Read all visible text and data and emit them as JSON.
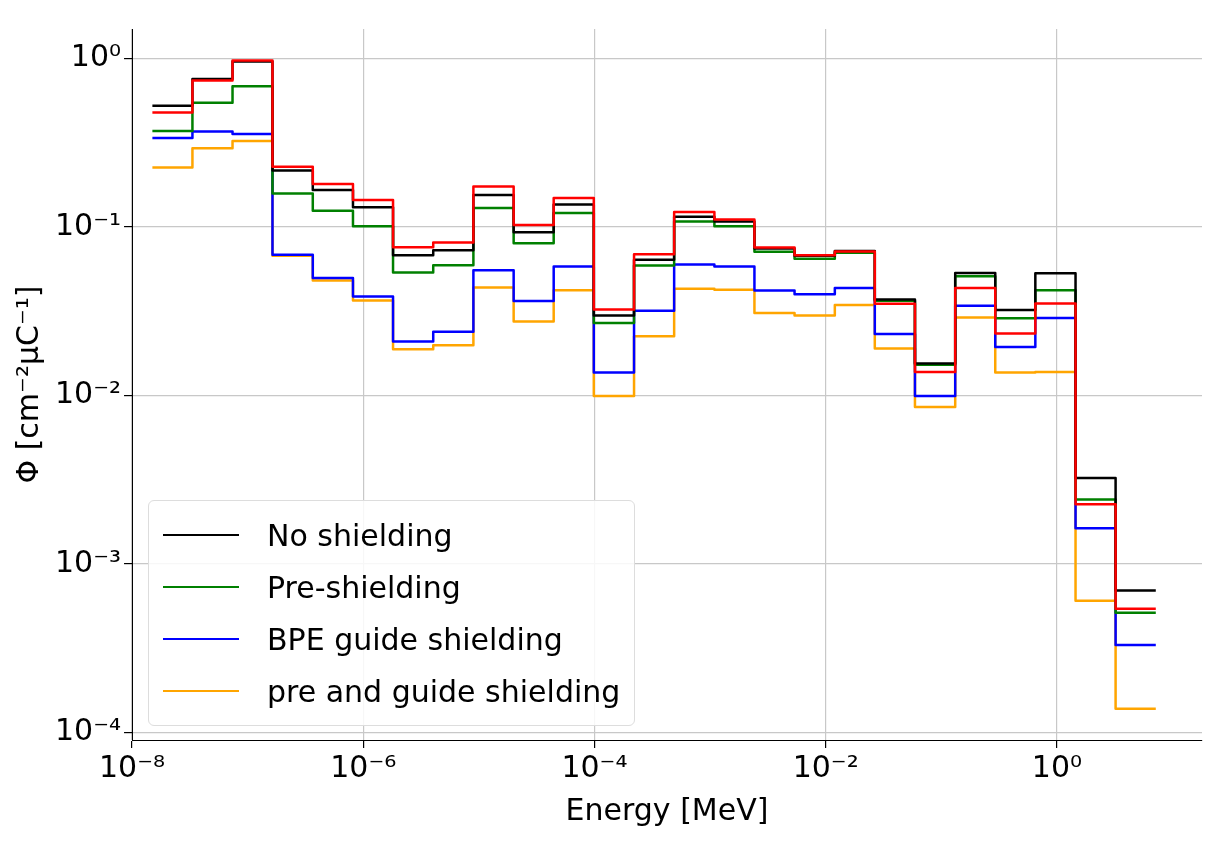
{
  "chart_data": {
    "type": "histogram",
    "xlabel": "Energy [MeV]",
    "ylabel": "Φ [cm⁻²μC⁻¹]",
    "bins": [
      1.5e-08,
      3.33e-08,
      7.4e-08,
      1.64e-07,
      3.66e-07,
      8.15e-07,
      1.81e-06,
      4.03e-06,
      8.97e-06,
      2e-05,
      4.44e-05,
      9.87e-05,
      0.00022,
      0.000489,
      0.00109,
      0.00242,
      0.00538,
      0.012,
      0.0266,
      0.0592,
      0.132,
      0.293,
      0.651,
      1.45,
      3.22,
      7.17
    ],
    "series": [
      {
        "color": "#ff0000",
        "values": [
          0.479,
          0.742,
          0.975,
          0.228,
          0.18,
          0.145,
          0.0758,
          0.0809,
          0.174,
          0.103,
          0.149,
          0.0324,
          0.0689,
          0.123,
          0.111,
          0.0755,
          0.068,
          0.0715,
          0.035,
          0.0138,
          0.0435,
          0.0233,
          0.0352,
          0.00226,
          0.000542
        ]
      },
      {
        "name": "No shielding",
        "color": "#000000",
        "values": [
          0.525,
          0.758,
          0.962,
          0.217,
          0.166,
          0.131,
          0.068,
          0.0729,
          0.155,
          0.0933,
          0.136,
          0.0298,
          0.064,
          0.115,
          0.108,
          0.0745,
          0.0675,
          0.0722,
          0.0372,
          0.0155,
          0.0533,
          0.0322,
          0.0531,
          0.00324,
          0.000695
        ]
      },
      {
        "name": "Pre-shielding",
        "color": "#008000",
        "values": [
          0.372,
          0.548,
          0.686,
          0.158,
          0.125,
          0.101,
          0.0538,
          0.0594,
          0.13,
          0.0802,
          0.121,
          0.0269,
          0.0592,
          0.108,
          0.101,
          0.0713,
          0.0649,
          0.0704,
          0.0365,
          0.0152,
          0.0511,
          0.0287,
          0.0422,
          0.00241,
          0.000513
        ]
      },
      {
        "name": "BPE guide shielding",
        "color": "#0000ff",
        "values": [
          0.338,
          0.369,
          0.357,
          0.0686,
          0.0498,
          0.0387,
          0.0209,
          0.0239,
          0.0554,
          0.0364,
          0.0584,
          0.0137,
          0.0318,
          0.06,
          0.0584,
          0.042,
          0.0399,
          0.0435,
          0.0232,
          0.00992,
          0.0341,
          0.0194,
          0.0288,
          0.00163,
          0.00033
        ]
      },
      {
        "name": "pre and guide shielding",
        "color": "#ffa500",
        "values": [
          0.226,
          0.294,
          0.324,
          0.0675,
          0.0481,
          0.0367,
          0.0188,
          0.0199,
          0.0437,
          0.0275,
          0.0422,
          0.00992,
          0.0225,
          0.043,
          0.0424,
          0.0309,
          0.0298,
          0.0344,
          0.019,
          0.00853,
          0.029,
          0.0137,
          0.0138,
          0.000605,
          0.000138
        ]
      }
    ],
    "log": "xy",
    "xlim": [
      1e-08,
      18
    ],
    "ylim": [
      9e-05,
      1.5
    ],
    "xticks": [
      {
        "value": 1e-08,
        "label": "10⁻⁸"
      },
      {
        "value": 1e-06,
        "label": "10⁻⁶"
      },
      {
        "value": 0.0001,
        "label": "10⁻⁴"
      },
      {
        "value": 0.01,
        "label": "10⁻²"
      },
      {
        "value": 1,
        "label": "10⁰"
      }
    ],
    "yticks": [
      {
        "value": 0.0001,
        "label": "10⁻⁴"
      },
      {
        "value": 0.001,
        "label": "10⁻³"
      },
      {
        "value": 0.01,
        "label": "10⁻²"
      },
      {
        "value": 0.1,
        "label": "10⁻¹"
      },
      {
        "value": 1,
        "label": "10⁰"
      }
    ],
    "grid": true,
    "legend": "bottom left"
  }
}
